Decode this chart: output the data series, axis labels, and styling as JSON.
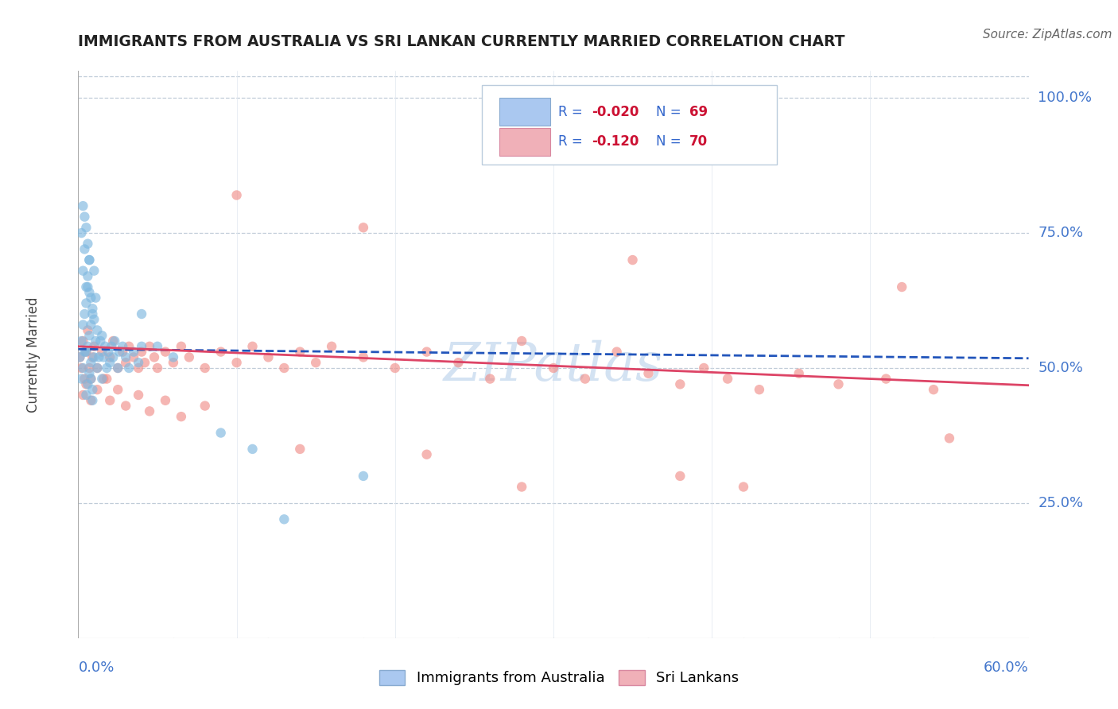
{
  "title": "IMMIGRANTS FROM AUSTRALIA VS SRI LANKAN CURRENTLY MARRIED CORRELATION CHART",
  "source": "Source: ZipAtlas.com",
  "ylabel": "Currently Married",
  "xmin": 0.0,
  "xmax": 0.6,
  "ymin": 0.0,
  "ymax": 1.05,
  "yticks": [
    0.25,
    0.5,
    0.75,
    1.0
  ],
  "ytick_labels": [
    "25.0%",
    "50.0%",
    "75.0%",
    "100.0%"
  ],
  "series1_label": "Immigrants from Australia",
  "series2_label": "Sri Lankans",
  "series1_color": "#7eb8e0",
  "series2_color": "#f0908a",
  "trendline1_color": "#2255bb",
  "trendline2_color": "#dd4466",
  "watermark": "ZIPatlas",
  "watermark_color": "#ccddf0",
  "legend_box_color": "#e8f0f8",
  "legend_box_edge": "#c0ccd8",
  "legend_text_color": "#3366cc",
  "legend_R_color": "#cc2244",
  "R1": -0.02,
  "N1": 69,
  "R2": -0.12,
  "N2": 70,
  "blue_x": [
    0.001,
    0.002,
    0.002,
    0.003,
    0.003,
    0.004,
    0.004,
    0.005,
    0.005,
    0.005,
    0.006,
    0.006,
    0.006,
    0.007,
    0.007,
    0.007,
    0.008,
    0.008,
    0.009,
    0.009,
    0.01,
    0.01,
    0.011,
    0.011,
    0.012,
    0.012,
    0.013,
    0.014,
    0.015,
    0.015,
    0.016,
    0.017,
    0.018,
    0.019,
    0.02,
    0.021,
    0.022,
    0.023,
    0.025,
    0.026,
    0.028,
    0.03,
    0.032,
    0.035,
    0.038,
    0.04,
    0.002,
    0.003,
    0.004,
    0.005,
    0.006,
    0.007,
    0.008,
    0.009,
    0.01,
    0.003,
    0.004,
    0.005,
    0.006,
    0.007,
    0.008,
    0.009,
    0.05,
    0.06,
    0.09,
    0.11,
    0.13,
    0.18,
    0.04
  ],
  "blue_y": [
    0.52,
    0.48,
    0.55,
    0.5,
    0.58,
    0.53,
    0.6,
    0.45,
    0.53,
    0.62,
    0.47,
    0.54,
    0.65,
    0.49,
    0.56,
    0.7,
    0.51,
    0.58,
    0.46,
    0.6,
    0.52,
    0.59,
    0.55,
    0.63,
    0.5,
    0.57,
    0.52,
    0.55,
    0.48,
    0.56,
    0.52,
    0.54,
    0.5,
    0.53,
    0.51,
    0.54,
    0.52,
    0.55,
    0.5,
    0.53,
    0.54,
    0.52,
    0.5,
    0.53,
    0.51,
    0.54,
    0.75,
    0.68,
    0.72,
    0.65,
    0.67,
    0.64,
    0.63,
    0.61,
    0.68,
    0.8,
    0.78,
    0.76,
    0.73,
    0.7,
    0.48,
    0.44,
    0.54,
    0.52,
    0.38,
    0.35,
    0.22,
    0.3,
    0.6
  ],
  "pink_x": [
    0.001,
    0.002,
    0.003,
    0.004,
    0.005,
    0.006,
    0.007,
    0.008,
    0.009,
    0.01,
    0.012,
    0.015,
    0.018,
    0.02,
    0.022,
    0.025,
    0.028,
    0.03,
    0.032,
    0.035,
    0.038,
    0.04,
    0.042,
    0.045,
    0.048,
    0.05,
    0.055,
    0.06,
    0.065,
    0.07,
    0.08,
    0.09,
    0.1,
    0.11,
    0.12,
    0.13,
    0.14,
    0.15,
    0.16,
    0.18,
    0.2,
    0.22,
    0.24,
    0.26,
    0.28,
    0.3,
    0.32,
    0.34,
    0.36,
    0.38,
    0.395,
    0.41,
    0.43,
    0.455,
    0.48,
    0.51,
    0.54,
    0.003,
    0.005,
    0.008,
    0.012,
    0.016,
    0.02,
    0.025,
    0.03,
    0.038,
    0.045,
    0.055,
    0.065,
    0.08
  ],
  "pink_y": [
    0.52,
    0.5,
    0.55,
    0.48,
    0.53,
    0.57,
    0.5,
    0.48,
    0.52,
    0.54,
    0.5,
    0.53,
    0.48,
    0.52,
    0.55,
    0.5,
    0.53,
    0.51,
    0.54,
    0.52,
    0.5,
    0.53,
    0.51,
    0.54,
    0.52,
    0.5,
    0.53,
    0.51,
    0.54,
    0.52,
    0.5,
    0.53,
    0.51,
    0.54,
    0.52,
    0.5,
    0.53,
    0.51,
    0.54,
    0.52,
    0.5,
    0.53,
    0.51,
    0.48,
    0.55,
    0.5,
    0.48,
    0.53,
    0.49,
    0.47,
    0.5,
    0.48,
    0.46,
    0.49,
    0.47,
    0.48,
    0.46,
    0.45,
    0.47,
    0.44,
    0.46,
    0.48,
    0.44,
    0.46,
    0.43,
    0.45,
    0.42,
    0.44,
    0.41,
    0.43
  ],
  "pink_outliers_x": [
    0.18,
    0.35,
    0.52,
    0.38,
    0.28,
    0.42,
    0.1,
    0.55,
    0.14,
    0.22
  ],
  "pink_outliers_y": [
    0.76,
    0.7,
    0.65,
    0.3,
    0.28,
    0.28,
    0.82,
    0.37,
    0.35,
    0.34
  ],
  "blue_trend_y0": 0.535,
  "blue_trend_y1": 0.518,
  "pink_trend_y0": 0.54,
  "pink_trend_y1": 0.468
}
